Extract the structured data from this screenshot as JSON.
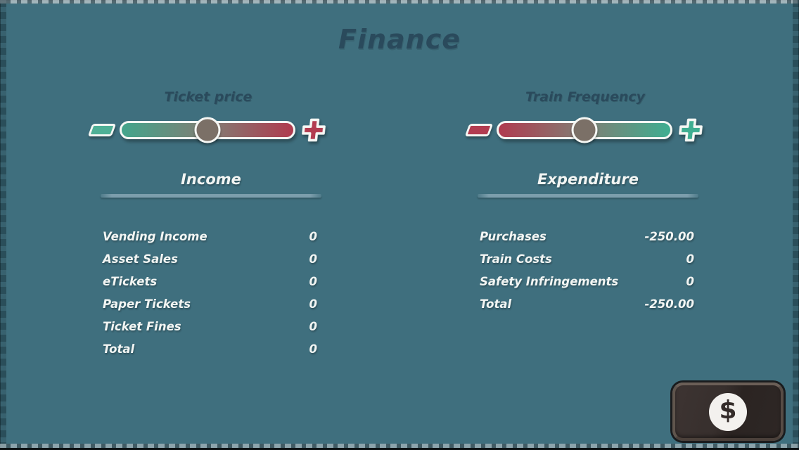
{
  "title": "Finance",
  "sliders": [
    {
      "id": "ticket-price",
      "label": "Ticket price",
      "value_pct": 50,
      "gradient": "teal-to-red",
      "minus_color": "#4fb096",
      "plus_color": "#b23c50"
    },
    {
      "id": "train-frequency",
      "label": "Train Frequency",
      "value_pct": 50,
      "gradient": "red-to-teal",
      "minus_color": "#b23c50",
      "plus_color": "#3fae91"
    }
  ],
  "income": {
    "header": "Income",
    "rows": [
      {
        "label": "Vending Income",
        "value": "0"
      },
      {
        "label": "Asset Sales",
        "value": "0"
      },
      {
        "label": "eTickets",
        "value": "0"
      },
      {
        "label": "Paper Tickets",
        "value": "0"
      },
      {
        "label": "Ticket Fines",
        "value": "0"
      },
      {
        "label": "Total",
        "value": "0"
      }
    ]
  },
  "expenditure": {
    "header": "Expenditure",
    "rows": [
      {
        "label": "Purchases",
        "value": "-250.00"
      },
      {
        "label": "Train Costs",
        "value": "0"
      },
      {
        "label": "Safety Infringements",
        "value": "0"
      },
      {
        "label": "Total",
        "value": "-250.00"
      }
    ]
  },
  "finance_button": {
    "icon": "dollar-sign-icon",
    "glyph": "$"
  },
  "icons": {
    "ticket_minus": "minus-icon",
    "ticket_plus": "plus-icon",
    "train_minus": "minus-icon",
    "train_plus": "plus-icon"
  },
  "colors": {
    "background": "#3f6f7e",
    "title_text": "#2a4a5c",
    "light_text": "#f2f5f3",
    "teal_accent": "#43a58c",
    "red_accent": "#b03b4f",
    "slider_handle": "#7b7067",
    "section_underline": "#7fa0ae",
    "button_body": "#332b29",
    "button_circle": "#f3f1ee"
  }
}
